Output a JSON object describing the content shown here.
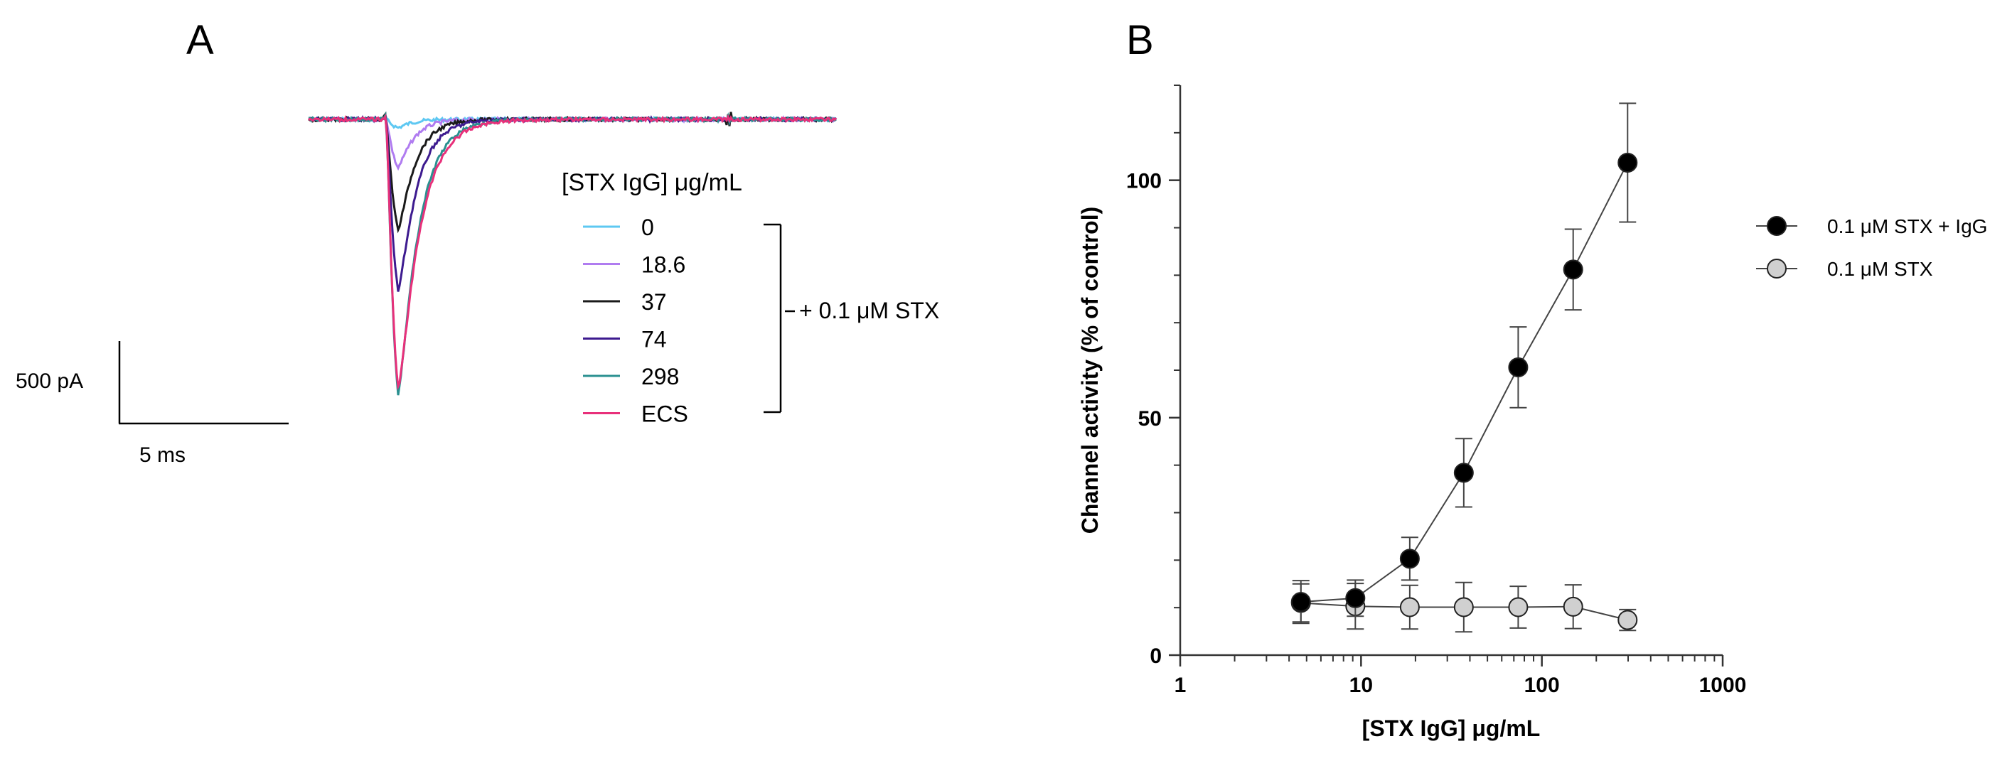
{
  "chart_data": [
    {
      "panel_label": "A",
      "type": "line",
      "legend_title": "[STX IgG] μg/mL",
      "bracket_label": "+ 0.1 μM STX",
      "scale_bar": {
        "current": "500 pA",
        "time": "5 ms"
      },
      "series": [
        {
          "name": "0",
          "color": "#5ec8f2",
          "peak_pA": -60
        },
        {
          "name": "18.6",
          "color": "#b07cf0",
          "peak_pA": -350
        },
        {
          "name": "37",
          "color": "#1a1a1a",
          "peak_pA": -800
        },
        {
          "name": "74",
          "color": "#3d1a8f",
          "peak_pA": -1240
        },
        {
          "name": "298",
          "color": "#2a9090",
          "peak_pA": -1980
        },
        {
          "name": "ECS",
          "color": "#e8307a",
          "peak_pA": -1940
        }
      ]
    },
    {
      "panel_label": "B",
      "type": "scatter",
      "xlabel": "[STX IgG] μg/mL",
      "ylabel": "Channel activity (% of control)",
      "x_scale": "log",
      "xlim": [
        1,
        1000
      ],
      "ylim": [
        0,
        120
      ],
      "x_ticks": [
        1,
        10,
        100,
        1000
      ],
      "x_tick_labels": [
        "1",
        "10",
        "100",
        "1000"
      ],
      "y_ticks": [
        0,
        50,
        100
      ],
      "y_tick_labels": [
        "0",
        "50",
        "100"
      ],
      "legend_position": "right",
      "series": [
        {
          "name": "0.1 μM STX + IgG",
          "marker_color": "#000000",
          "x": [
            4.65,
            9.3,
            18.6,
            37,
            74,
            149,
            298
          ],
          "y": [
            11.2,
            12.0,
            20.3,
            38.4,
            60.6,
            81.2,
            103.7
          ],
          "err": [
            4.5,
            3.8,
            4.5,
            7.2,
            8.5,
            8.5,
            12.5
          ]
        },
        {
          "name": "0.1 μM STX",
          "marker_color": "#d0d0d0",
          "x": [
            4.65,
            9.3,
            18.6,
            37,
            74,
            149,
            298
          ],
          "y": [
            11.0,
            10.3,
            10.1,
            10.1,
            10.1,
            10.2,
            7.4
          ],
          "err": [
            4.0,
            4.8,
            4.6,
            5.2,
            4.4,
            4.6,
            2.2
          ]
        }
      ]
    }
  ]
}
